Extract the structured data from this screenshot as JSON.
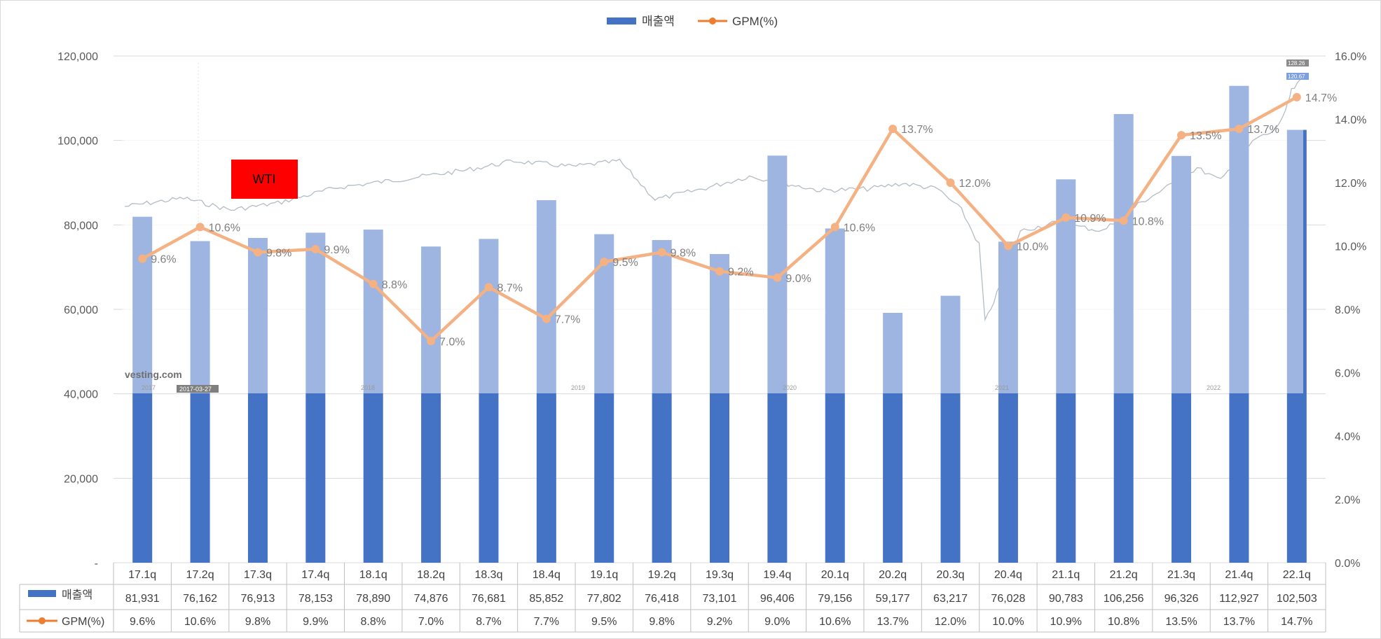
{
  "chart_data": {
    "type": "bar+line",
    "categories": [
      "17.1q",
      "17.2q",
      "17.3q",
      "17.4q",
      "18.1q",
      "18.2q",
      "18.3q",
      "18.4q",
      "19.1q",
      "19.2q",
      "19.3q",
      "19.4q",
      "20.1q",
      "20.2q",
      "20.3q",
      "20.4q",
      "21.1q",
      "21.2q",
      "21.3q",
      "21.4q",
      "22.1q"
    ],
    "series": [
      {
        "name": "매출액",
        "type": "bar",
        "axis": "left",
        "color": "#4472C4",
        "values": [
          81931,
          76162,
          76913,
          78153,
          78890,
          74876,
          76681,
          85852,
          77802,
          76418,
          73101,
          96406,
          79156,
          59177,
          63217,
          76028,
          90783,
          106256,
          96326,
          112927,
          102503
        ],
        "display": [
          "81,931",
          "76,162",
          "76,913",
          "78,153",
          "78,890",
          "74,876",
          "76,681",
          "85,852",
          "77,802",
          "76,418",
          "73,101",
          "96,406",
          "79,156",
          "59,177",
          "63,217",
          "76,028",
          "90,783",
          "106,256",
          "96,326",
          "112,927",
          "102,503"
        ]
      },
      {
        "name": "GPM(%)",
        "type": "line",
        "axis": "right",
        "color": "#ED7D31",
        "values": [
          9.6,
          10.6,
          9.8,
          9.9,
          8.8,
          7.0,
          8.7,
          7.7,
          9.5,
          9.8,
          9.2,
          9.0,
          10.6,
          13.7,
          12.0,
          10.0,
          10.9,
          10.8,
          13.5,
          13.7,
          14.7
        ],
        "display": [
          "9.6%",
          "10.6%",
          "9.8%",
          "9.9%",
          "8.8%",
          "7.0%",
          "8.7%",
          "7.7%",
          "9.5%",
          "9.8%",
          "9.2%",
          "9.0%",
          "10.6%",
          "13.7%",
          "12.0%",
          "10.0%",
          "10.9%",
          "10.8%",
          "13.5%",
          "13.7%",
          "14.7%"
        ]
      }
    ],
    "left_axis": {
      "min": 0,
      "max": 120000,
      "step": 20000,
      "labels": [
        "-",
        "20,000",
        "40,000",
        "60,000",
        "80,000",
        "100,000",
        "120,000"
      ]
    },
    "right_axis": {
      "min": 0,
      "max": 16,
      "step": 2,
      "labels": [
        "0.0%",
        "2.0%",
        "4.0%",
        "6.0%",
        "8.0%",
        "10.0%",
        "12.0%",
        "14.0%",
        "16.0%"
      ]
    },
    "legend": {
      "position": "top-center",
      "items": [
        "매출액",
        "GPM(%)"
      ]
    },
    "data_table": true,
    "overlay": {
      "label": "WTI",
      "label_color": "#FF0000",
      "watermark": "vesting.com",
      "date_stamp": "2017-03-27",
      "year_labels": [
        "2017",
        "2018",
        "2019",
        "2020",
        "2021",
        "2022"
      ],
      "price_badges": [
        "128.26",
        "120.67"
      ]
    }
  }
}
